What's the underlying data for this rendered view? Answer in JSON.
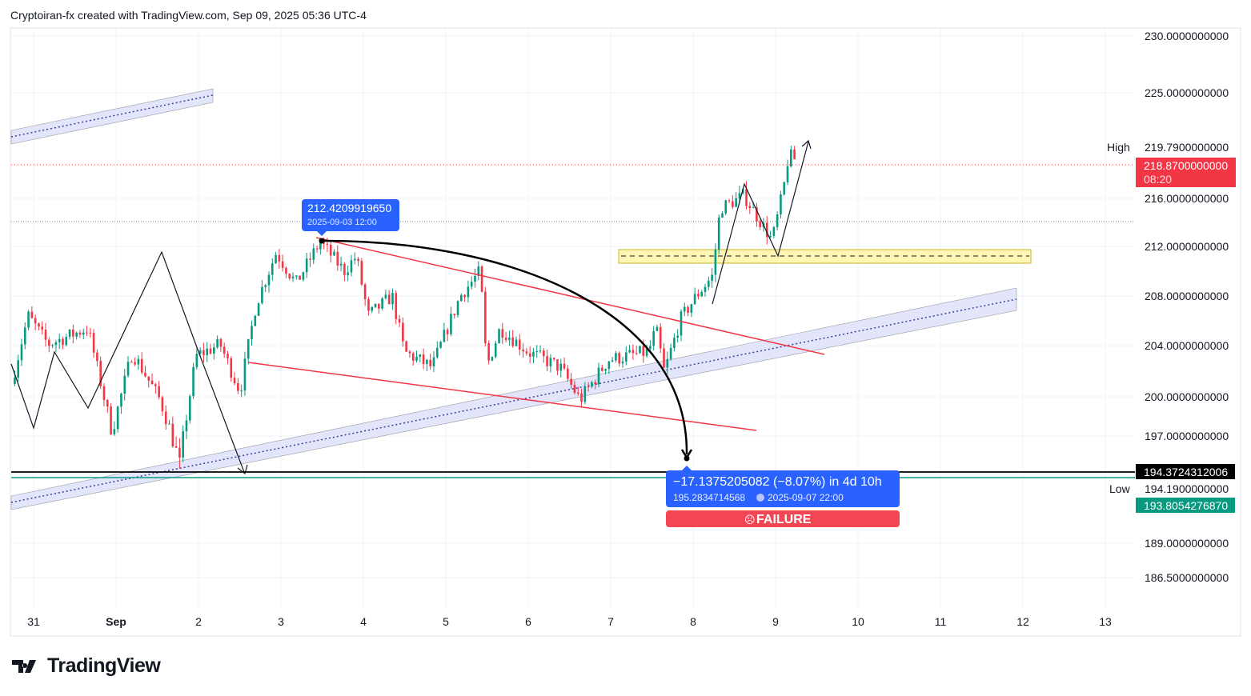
{
  "header": {
    "title": "Cryptoiran-fx created with TradingView.com, Sep 09, 2025 05:36 UTC-4"
  },
  "brand": {
    "name": "TradingView"
  },
  "colors": {
    "up": "#089981",
    "down": "#f23645",
    "accent": "#2962ff",
    "failure": "#f23645"
  },
  "price_axis": {
    "high_label": "High",
    "high_value": "219.7900000000",
    "low_label": "Low",
    "low_value": "194.1900000000",
    "current_price": "218.8700000000",
    "countdown": "08:20",
    "level_black": "194.3724312006",
    "level_teal": "193.8054276870"
  },
  "callout_top": {
    "price": "212.4209919650",
    "time": "2025-09-03 12:00"
  },
  "measure": {
    "change": "−17.1375205082 (−8.07%) in 4d 10h",
    "target": "195.2834714568",
    "time": "2025-09-07  22:00",
    "result": "FAILURE",
    "result_icon": "☹"
  },
  "chart_data": {
    "type": "candlestick",
    "title": "",
    "xlabel": "",
    "ylabel": "",
    "ylim": [
      186.5,
      230
    ],
    "y_ticks": [
      "230.0000000000",
      "225.0000000000",
      "216.0000000000",
      "212.0000000000",
      "208.0000000000",
      "204.0000000000",
      "200.0000000000",
      "197.0000000000",
      "189.0000000000",
      "186.5000000000"
    ],
    "y_tick_values": [
      230,
      225,
      216,
      212,
      208,
      204,
      200,
      197,
      189,
      186.5
    ],
    "x_ticks": [
      "31",
      "Sep",
      "2",
      "3",
      "4",
      "5",
      "6",
      "7",
      "8",
      "9",
      "10",
      "11",
      "12",
      "13"
    ],
    "price_path_hours_since_aug31": [
      [
        -6.5,
        201.0
      ],
      [
        -1.6,
        206.4
      ],
      [
        4.2,
        204.1
      ],
      [
        15.8,
        205.4
      ],
      [
        22.8,
        197.3
      ],
      [
        28.7,
        203.5
      ],
      [
        36.8,
        199.75
      ],
      [
        42.6,
        195.3
      ],
      [
        47.3,
        203.2
      ],
      [
        54.3,
        204.1
      ],
      [
        60.1,
        200.4
      ],
      [
        64.8,
        207.4
      ],
      [
        70.6,
        211.5
      ],
      [
        76.4,
        209
      ],
      [
        83.4,
        212.4
      ],
      [
        90.4,
        210
      ],
      [
        93.9,
        211.2
      ],
      [
        97.4,
        206.4
      ],
      [
        104.4,
        208
      ],
      [
        107.9,
        203.5
      ],
      [
        116,
        202.3
      ],
      [
        124.2,
        208
      ],
      [
        130,
        210
      ],
      [
        131.9,
        202.3
      ],
      [
        135.8,
        205.4
      ],
      [
        144,
        203.5
      ],
      [
        153.3,
        202.3
      ],
      [
        159.1,
        199.75
      ],
      [
        167.3,
        202.9
      ],
      [
        179,
        203.5
      ],
      [
        181.2,
        205.4
      ],
      [
        183.6,
        201.9
      ],
      [
        188.3,
        206.1
      ],
      [
        192.9,
        208
      ],
      [
        197.6,
        209.6
      ],
      [
        199.9,
        215.2
      ],
      [
        206.9,
        216.2
      ],
      [
        215,
        212.5
      ],
      [
        218.5,
        217.0
      ],
      [
        219.7,
        219.1
      ],
      [
        222,
        218.87
      ]
    ]
  }
}
